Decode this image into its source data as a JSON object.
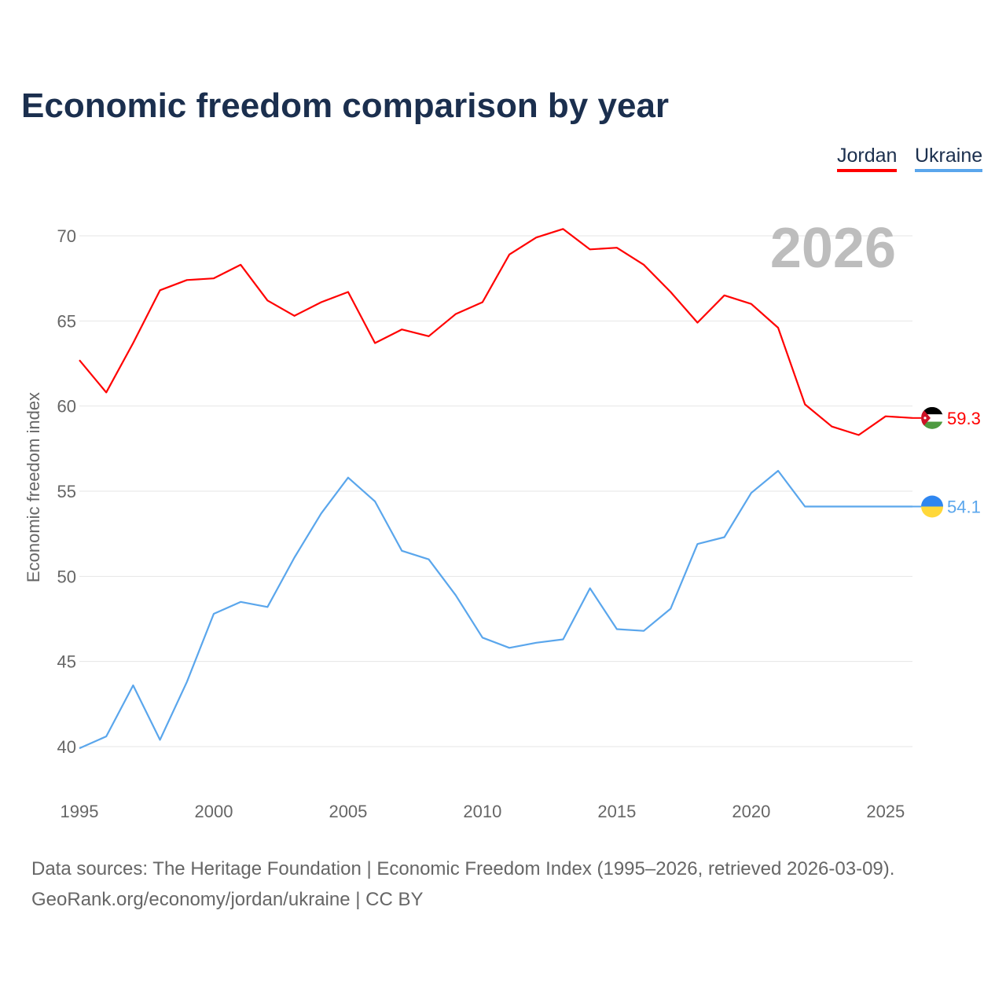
{
  "chart_data": {
    "type": "line",
    "title": "Economic freedom comparison by year",
    "xlabel": "",
    "ylabel": "Economic freedom index",
    "year_label": "2026",
    "xlim": [
      1995,
      2026
    ],
    "ylim": [
      37.5,
      72
    ],
    "x_ticks": [
      1995,
      2000,
      2005,
      2010,
      2015,
      2020,
      2025
    ],
    "y_ticks": [
      40,
      45,
      50,
      55,
      60,
      65,
      70
    ],
    "grid": true,
    "legend_position": "top-right",
    "x": [
      1995,
      1996,
      1997,
      1998,
      1999,
      2000,
      2001,
      2002,
      2003,
      2004,
      2005,
      2006,
      2007,
      2008,
      2009,
      2010,
      2011,
      2012,
      2013,
      2014,
      2015,
      2016,
      2017,
      2018,
      2019,
      2020,
      2021,
      2022,
      2023,
      2024,
      2025,
      2026
    ],
    "series": [
      {
        "name": "Jordan",
        "color": "#ff0000",
        "end_label": "59.3",
        "values": [
          62.7,
          60.8,
          63.7,
          66.8,
          67.4,
          67.5,
          68.3,
          66.2,
          65.3,
          66.1,
          66.7,
          63.7,
          64.5,
          64.1,
          65.4,
          66.1,
          68.9,
          69.9,
          70.4,
          69.2,
          69.3,
          68.3,
          66.7,
          64.9,
          66.5,
          66.0,
          64.6,
          60.1,
          58.8,
          58.3,
          59.4,
          59.3
        ]
      },
      {
        "name": "Ukraine",
        "color": "#5aa6ec",
        "end_label": "54.1",
        "values": [
          39.9,
          40.6,
          43.6,
          40.4,
          43.8,
          47.8,
          48.5,
          48.2,
          51.1,
          53.7,
          55.8,
          54.4,
          51.5,
          51.0,
          48.9,
          46.4,
          45.8,
          46.1,
          46.3,
          49.3,
          46.9,
          46.8,
          48.1,
          51.9,
          52.3,
          54.9,
          56.2,
          54.1,
          54.1,
          54.1,
          54.1,
          54.1
        ]
      }
    ]
  },
  "footer": {
    "line1": "Data sources: The Heritage Foundation | Economic Freedom Index (1995–2026, retrieved 2026-03-09).",
    "line2": "GeoRank.org/economy/jordan/ukraine | CC BY"
  }
}
